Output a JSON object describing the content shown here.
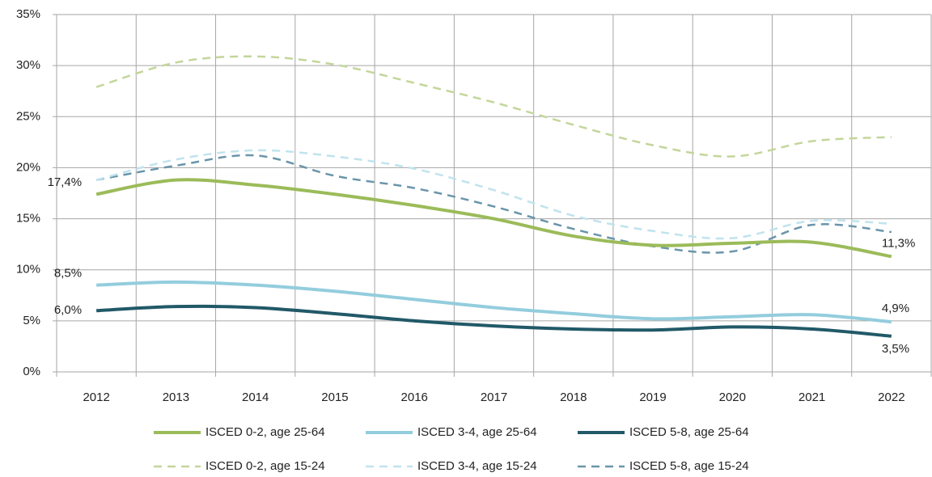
{
  "chart_data": {
    "type": "line",
    "categories": [
      "2012",
      "2013",
      "2014",
      "2015",
      "2016",
      "2017",
      "2018",
      "2019",
      "2020",
      "2021",
      "2022"
    ],
    "ylim": [
      0,
      35
    ],
    "yticks": [
      {
        "value": 0,
        "label": "0%"
      },
      {
        "value": 5,
        "label": "5%"
      },
      {
        "value": 10,
        "label": "10%"
      },
      {
        "value": 15,
        "label": "15%"
      },
      {
        "value": 20,
        "label": "20%"
      },
      {
        "value": 25,
        "label": "25%"
      },
      {
        "value": 30,
        "label": "30%"
      },
      {
        "value": 35,
        "label": "35%"
      }
    ],
    "grid": true,
    "legend": "bottom",
    "series": [
      {
        "name": "ISCED 0-2, age 25-64",
        "color": "#9bbb59",
        "dashed": false,
        "values": [
          17.4,
          18.8,
          18.3,
          17.4,
          16.3,
          15.0,
          13.3,
          12.4,
          12.6,
          12.7,
          11.3
        ],
        "value_labels": [
          "17,4%",
          null,
          null,
          null,
          null,
          null,
          null,
          null,
          null,
          null,
          "11,3%"
        ]
      },
      {
        "name": "ISCED 3-4, age 25-64",
        "color": "#93cddd",
        "dashed": false,
        "values": [
          8.5,
          8.8,
          8.5,
          7.9,
          7.1,
          6.3,
          5.7,
          5.2,
          5.4,
          5.6,
          4.9
        ],
        "value_labels": [
          "8,5%",
          null,
          null,
          null,
          null,
          null,
          null,
          null,
          null,
          null,
          "4,9%"
        ]
      },
      {
        "name": "ISCED 5-8, age 25-64",
        "color": "#215968",
        "dashed": false,
        "values": [
          6.0,
          6.4,
          6.3,
          5.7,
          5.0,
          4.5,
          4.2,
          4.1,
          4.4,
          4.2,
          3.5
        ],
        "value_labels": [
          "6,0%",
          null,
          null,
          null,
          null,
          null,
          null,
          null,
          null,
          null,
          "3,5%"
        ]
      },
      {
        "name": "ISCED 0-2, age 15-24",
        "color": "#c3d69b",
        "dashed": true,
        "values": [
          27.9,
          30.3,
          30.9,
          30.1,
          28.3,
          26.4,
          24.2,
          22.2,
          21.1,
          22.6,
          23.0
        ]
      },
      {
        "name": "ISCED 3-4, age 15-24",
        "color": "#c0e3ee",
        "dashed": true,
        "values": [
          18.8,
          20.8,
          21.7,
          21.1,
          19.9,
          17.8,
          15.3,
          13.8,
          13.1,
          14.8,
          14.5
        ]
      },
      {
        "name": "ISCED 5-8, age 15-24",
        "color": "#6a95aa",
        "dashed": true,
        "values": [
          18.8,
          20.2,
          21.2,
          19.2,
          18.0,
          16.2,
          14.0,
          12.3,
          11.8,
          14.4,
          13.7
        ]
      }
    ]
  }
}
